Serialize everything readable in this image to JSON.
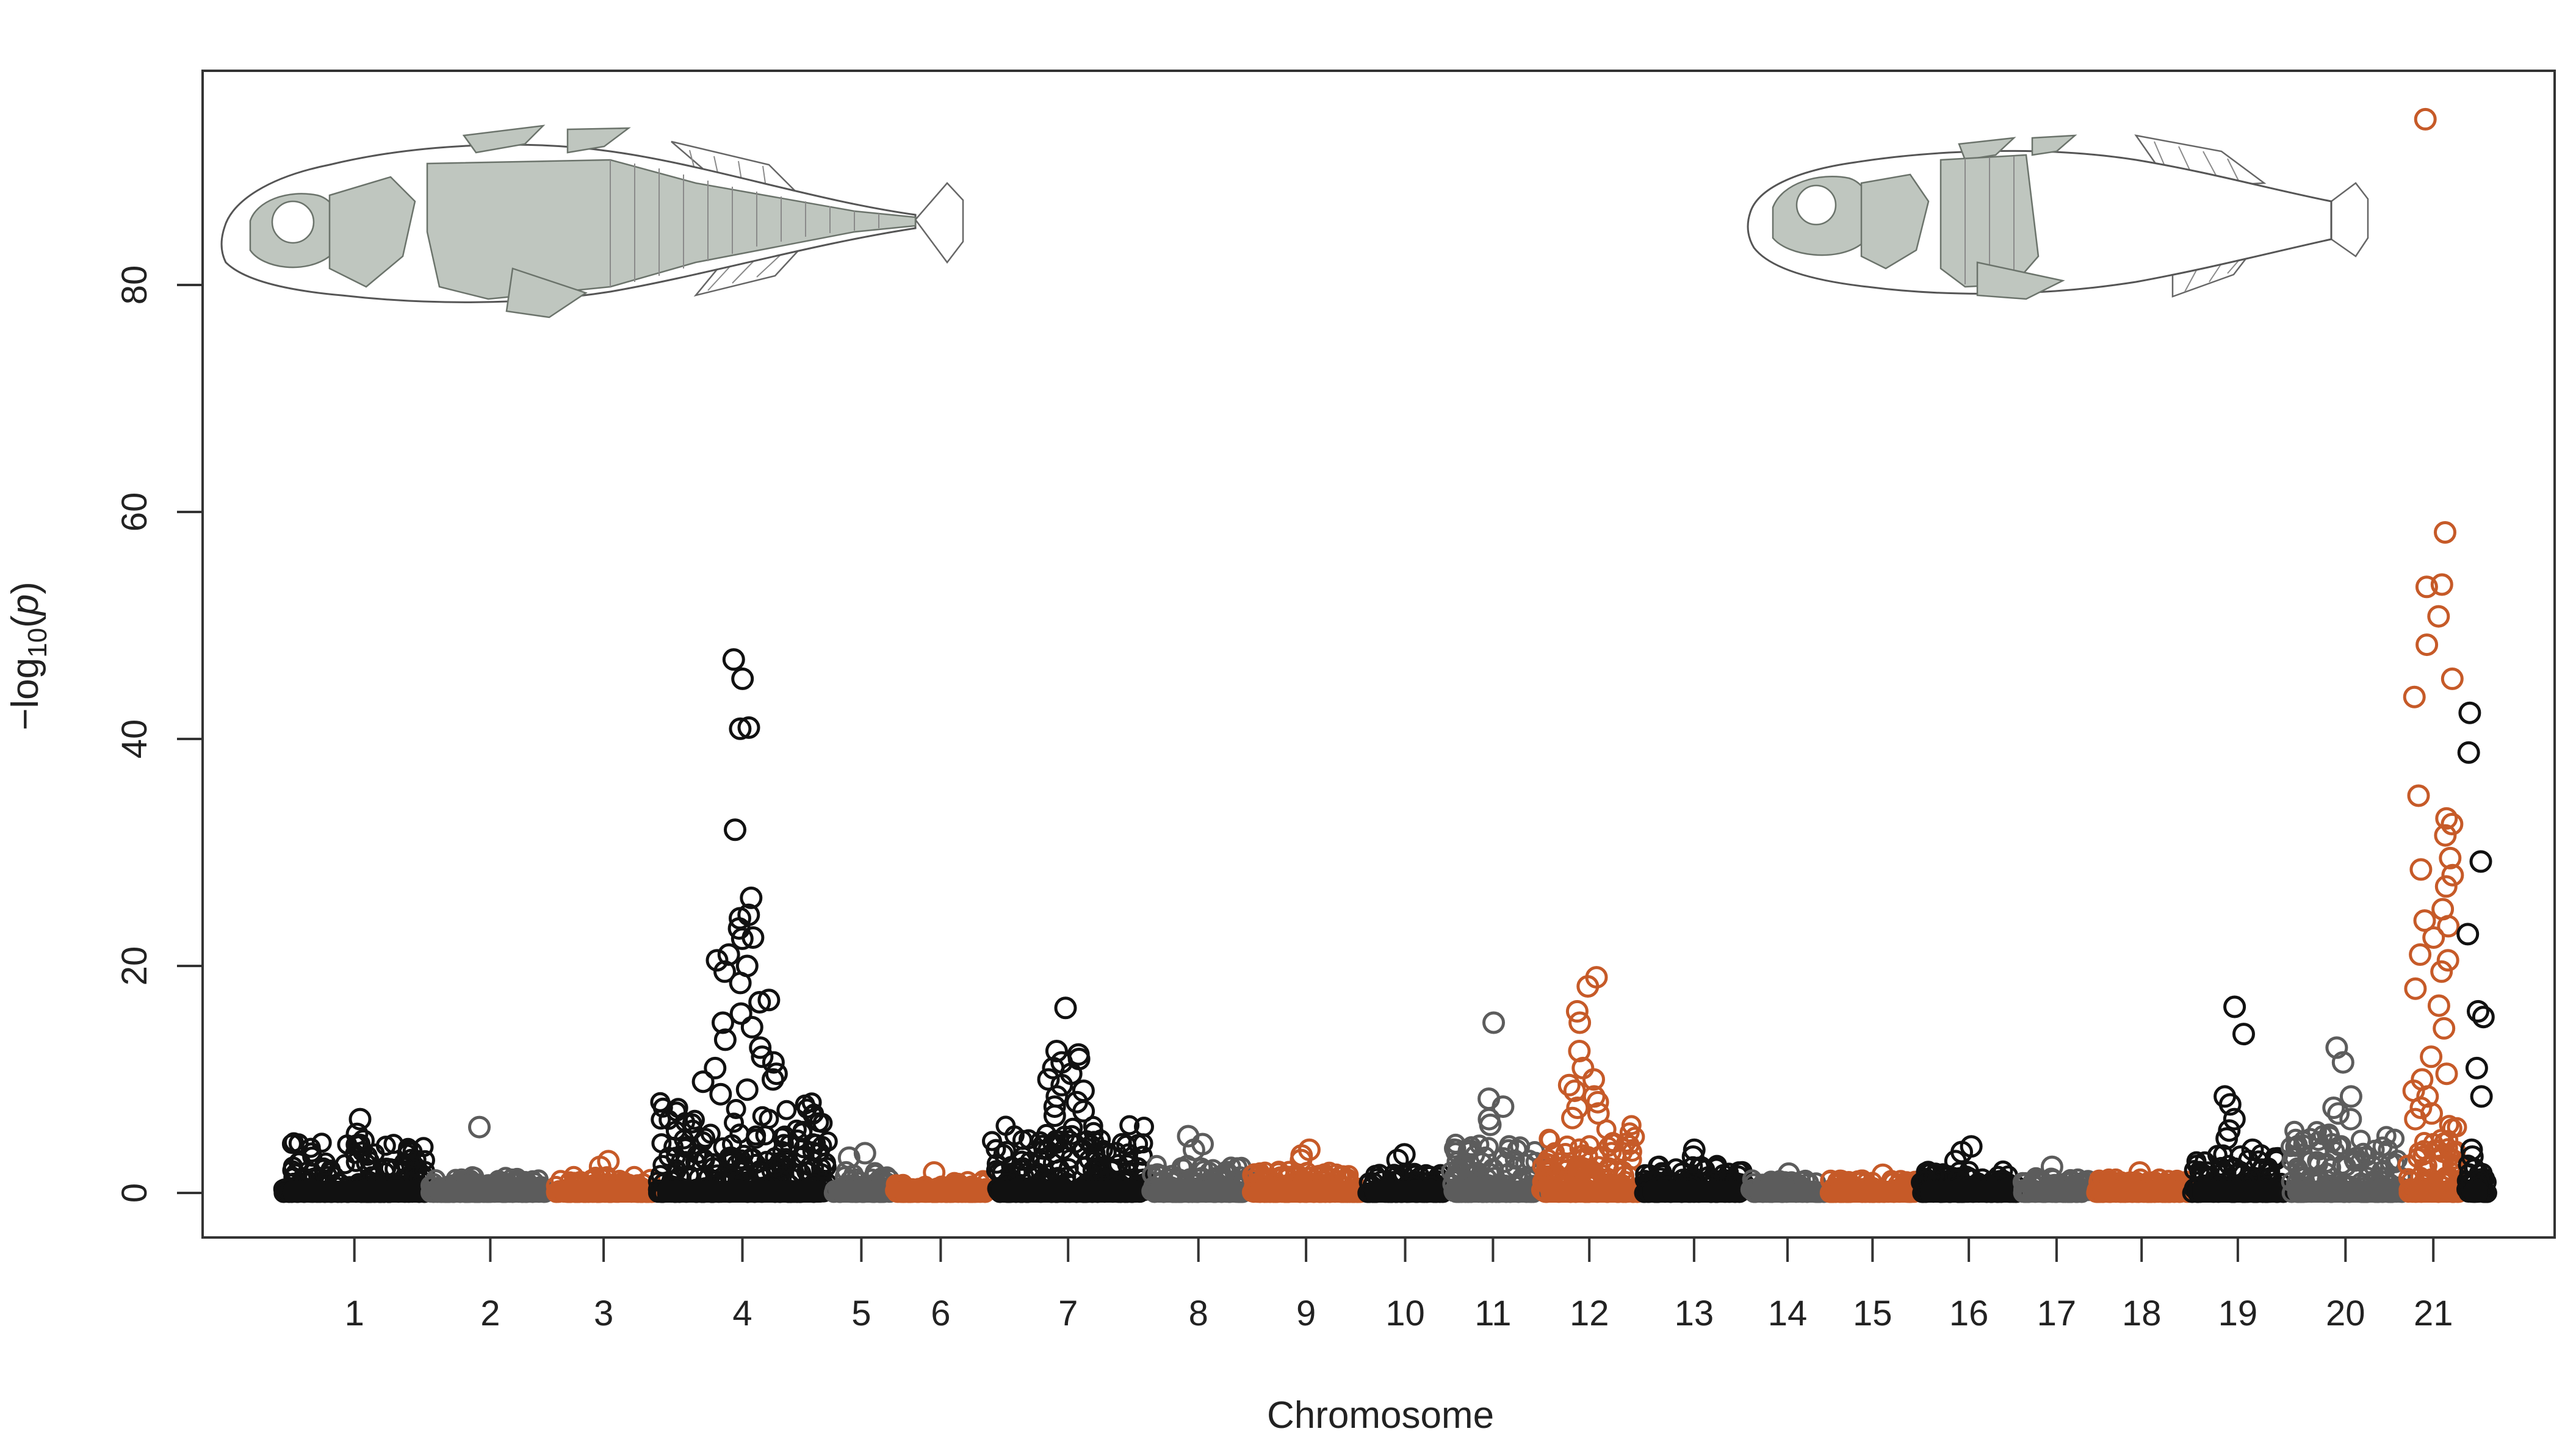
{
  "chart_data": {
    "type": "scatter",
    "subtype": "manhattan",
    "xlabel": "Chromosome",
    "ylabel_parts": [
      "−log",
      "10",
      "(",
      "p",
      ")"
    ],
    "ylim": [
      -4,
      96
    ],
    "yticks": [
      0,
      20,
      40,
      60,
      80
    ],
    "grid": false,
    "legend": "none",
    "colors": {
      "black": "#111111",
      "gray": "#5c5c5c",
      "orange": "#c65a28"
    },
    "chromosomes": [
      {
        "label": "1",
        "color": "black",
        "baseline_max": 4.5,
        "peaks": [
          6.5,
          5.2,
          4.6,
          4.1
        ]
      },
      {
        "label": "2",
        "color": "gray",
        "baseline_max": 1.5,
        "peaks": [
          5.8
        ]
      },
      {
        "label": "3",
        "color": "orange",
        "baseline_max": 1.5,
        "peaks": [
          2.8,
          2.3
        ]
      },
      {
        "label": "4",
        "color": "black",
        "baseline_max": 8,
        "peaks": [
          47,
          45.3,
          41,
          40.9,
          32,
          26,
          24.5,
          24.2,
          23.3,
          22.5,
          22.4,
          21,
          20.5,
          20,
          19.5,
          18.5,
          17,
          16.8,
          15.8,
          15,
          14.6,
          13.5,
          12.8,
          12,
          11.5,
          11,
          10.5,
          10,
          9.8,
          9.1,
          8.7
        ]
      },
      {
        "label": "5",
        "color": "gray",
        "baseline_max": 2,
        "peaks": [
          3.5,
          3.1
        ]
      },
      {
        "label": "6",
        "color": "orange",
        "baseline_max": 1.2,
        "peaks": [
          1.8
        ]
      },
      {
        "label": "7",
        "color": "black",
        "baseline_max": 6,
        "peaks": [
          16.3,
          12.5,
          12.2,
          11.8,
          11.5,
          11,
          10.5,
          10,
          9.5,
          9,
          8.5,
          8,
          7.6,
          7.2,
          6.8
        ]
      },
      {
        "label": "8",
        "color": "gray",
        "baseline_max": 2.5,
        "peaks": [
          5,
          4.3,
          3.8
        ]
      },
      {
        "label": "9",
        "color": "orange",
        "baseline_max": 2,
        "peaks": [
          3.8,
          3.3,
          2.9
        ]
      },
      {
        "label": "10",
        "color": "black",
        "baseline_max": 1.8,
        "peaks": [
          3.4,
          2.9
        ]
      },
      {
        "label": "11",
        "color": "gray",
        "baseline_max": 5,
        "peaks": [
          15,
          8.3,
          7.6,
          6.5,
          6
        ]
      },
      {
        "label": "12",
        "color": "orange",
        "baseline_max": 6,
        "peaks": [
          19,
          18.2,
          16,
          15,
          12.5,
          11,
          10,
          9.5,
          9,
          8.5,
          8,
          7.5,
          7,
          6.6
        ]
      },
      {
        "label": "13",
        "color": "black",
        "baseline_max": 2.5,
        "peaks": [
          3.8,
          3.2
        ]
      },
      {
        "label": "14",
        "color": "gray",
        "baseline_max": 1.2,
        "peaks": [
          1.7
        ]
      },
      {
        "label": "15",
        "color": "orange",
        "baseline_max": 1.2,
        "peaks": [
          1.6
        ]
      },
      {
        "label": "16",
        "color": "black",
        "baseline_max": 2,
        "peaks": [
          4.1,
          3.6,
          2.8
        ]
      },
      {
        "label": "17",
        "color": "gray",
        "baseline_max": 1.5,
        "peaks": [
          2.3
        ]
      },
      {
        "label": "18",
        "color": "orange",
        "baseline_max": 1.3,
        "peaks": [
          1.8
        ]
      },
      {
        "label": "19",
        "color": "black",
        "baseline_max": 3.5,
        "peaks": [
          16.4,
          14,
          8.5,
          7.8,
          6.5,
          5.5,
          4.8,
          3.8,
          3.2
        ]
      },
      {
        "label": "20",
        "color": "gray",
        "baseline_max": 5.5,
        "peaks": [
          12.8,
          11.5,
          8.5,
          7.5,
          7,
          6.5
        ]
      },
      {
        "label": "21",
        "color": "orange",
        "baseline_max": 6,
        "peaks": [
          94.6,
          58.2,
          53.6,
          53.4,
          50.8,
          48.3,
          45.3,
          43.7,
          35,
          33,
          32.5,
          31.5,
          29.5,
          28.5,
          28,
          27,
          25,
          24,
          23.5,
          22.5,
          21,
          20.5,
          19.5,
          18,
          16.5,
          14.5,
          12,
          10.5,
          10,
          9,
          8.5,
          7.5,
          7,
          6.5
        ]
      },
      {
        "label": "",
        "color": "black",
        "baseline_max": 2.5,
        "peaks": [
          42.3,
          38.8,
          29.2,
          22.8,
          16,
          15.5,
          11,
          8.5,
          3.8,
          3.2
        ]
      }
    ]
  },
  "illustrations": {
    "left_fish": "fully-plated-stickleback-illustration",
    "right_fish": "low-plated-stickleback-illustration"
  }
}
